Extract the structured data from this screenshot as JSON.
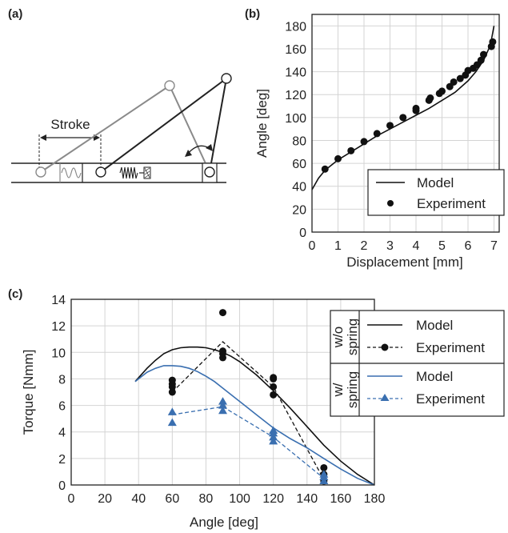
{
  "panels": {
    "a": {
      "label": "(a)",
      "stroke_label": "Stroke"
    }
  },
  "chart_data": [
    {
      "id": "b",
      "panel_label": "(b)",
      "type": "line",
      "xlabel": "Displacement [mm]",
      "ylabel": "Angle [deg]",
      "xlim": [
        0,
        7.2
      ],
      "ylim": [
        0,
        190
      ],
      "xticks": [
        0,
        1,
        2,
        3,
        4,
        5,
        6,
        7
      ],
      "yticks": [
        0,
        20,
        40,
        60,
        80,
        100,
        120,
        140,
        160,
        180
      ],
      "grid": true,
      "legend_position": "bottom-right",
      "series": [
        {
          "name": "Model",
          "style": "line",
          "color": "#111111",
          "x": [
            0,
            0.25,
            0.5,
            1,
            1.5,
            2,
            2.5,
            3,
            3.5,
            4,
            4.5,
            5,
            5.5,
            6,
            6.3,
            6.6,
            6.8,
            6.9,
            7.0
          ],
          "y": [
            37,
            47,
            54,
            63,
            70,
            77,
            84,
            90,
            96,
            102,
            108,
            115,
            122,
            132,
            140,
            150,
            160,
            168,
            180
          ]
        },
        {
          "name": "Experiment",
          "style": "markers",
          "color": "#111111",
          "x": [
            0.5,
            1.0,
            1.5,
            2.0,
            2.5,
            3.0,
            3.5,
            4.0,
            4.0,
            4.5,
            4.55,
            4.9,
            5.0,
            5.3,
            5.45,
            5.7,
            5.9,
            6.0,
            6.2,
            6.35,
            6.5,
            6.6,
            6.9,
            6.95
          ],
          "y": [
            55,
            64,
            71,
            79,
            86,
            93,
            100,
            106,
            108,
            115,
            117,
            121,
            123,
            127,
            131,
            134,
            137,
            141,
            143,
            146,
            150,
            155,
            162,
            166
          ]
        }
      ]
    },
    {
      "id": "c",
      "panel_label": "(c)",
      "type": "line",
      "xlabel": "Angle [deg]",
      "ylabel": "Torque [Nmm]",
      "xlim": [
        0,
        180
      ],
      "ylim": [
        0,
        14
      ],
      "xticks": [
        0,
        20,
        40,
        60,
        80,
        100,
        120,
        140,
        160,
        180
      ],
      "yticks": [
        0,
        2,
        4,
        6,
        8,
        10,
        12,
        14
      ],
      "grid": true,
      "legend_position": "right",
      "legend_groups": [
        {
          "group_label": "w/o spring",
          "entries": [
            "Model",
            "Experiment"
          ]
        },
        {
          "group_label": "w/ spring",
          "entries": [
            "Model",
            "Experiment"
          ]
        }
      ],
      "series": [
        {
          "name": "Model",
          "group": "w/o spring",
          "style": "line",
          "color": "#111111",
          "x": [
            38,
            45,
            50,
            55,
            60,
            65,
            70,
            75,
            80,
            85,
            90,
            95,
            100,
            110,
            120,
            130,
            140,
            150,
            160,
            170,
            180
          ],
          "y": [
            7.8,
            8.8,
            9.4,
            9.9,
            10.2,
            10.35,
            10.4,
            10.4,
            10.35,
            10.2,
            10.0,
            9.7,
            9.3,
            8.3,
            7.1,
            5.8,
            4.4,
            3.0,
            1.8,
            0.8,
            0
          ]
        },
        {
          "name": "Experiment",
          "group": "w/o spring",
          "style": "dashed-markers",
          "color": "#111111",
          "x": [
            60,
            60,
            60,
            60,
            90,
            90,
            90,
            90,
            120,
            120,
            120,
            120,
            150,
            150,
            150
          ],
          "y": [
            7.0,
            7.4,
            7.6,
            7.9,
            9.6,
            9.9,
            10.1,
            13.0,
            6.8,
            7.4,
            8.0,
            8.1,
            0.3,
            0.8,
            1.3
          ],
          "trend_x": [
            60,
            90,
            120,
            150
          ],
          "trend_y": [
            7.0,
            10.8,
            7.4,
            0.4
          ]
        },
        {
          "name": "Model",
          "group": "w/ spring",
          "style": "line",
          "color": "#3a6fb0",
          "x": [
            38,
            45,
            50,
            55,
            60,
            65,
            70,
            75,
            80,
            85,
            90,
            100,
            110,
            120,
            130,
            140,
            150,
            160,
            170,
            180
          ],
          "y": [
            7.8,
            8.5,
            8.8,
            9.0,
            9.0,
            8.95,
            8.8,
            8.55,
            8.2,
            7.8,
            7.3,
            6.3,
            5.3,
            4.3,
            3.5,
            2.8,
            2.0,
            1.2,
            0.5,
            0
          ]
        },
        {
          "name": "Experiment",
          "group": "w/ spring",
          "style": "dashed-markers",
          "color": "#3a6fb0",
          "x": [
            60,
            60,
            90,
            90,
            90,
            120,
            120,
            120,
            120,
            150,
            150,
            150
          ],
          "y": [
            4.7,
            5.5,
            5.6,
            6.0,
            6.3,
            3.3,
            3.6,
            3.9,
            4.1,
            0.3,
            0.6,
            0.8
          ],
          "trend_x": [
            60,
            90,
            120,
            150
          ],
          "trend_y": [
            5.3,
            5.9,
            3.6,
            0.5
          ]
        }
      ]
    }
  ]
}
